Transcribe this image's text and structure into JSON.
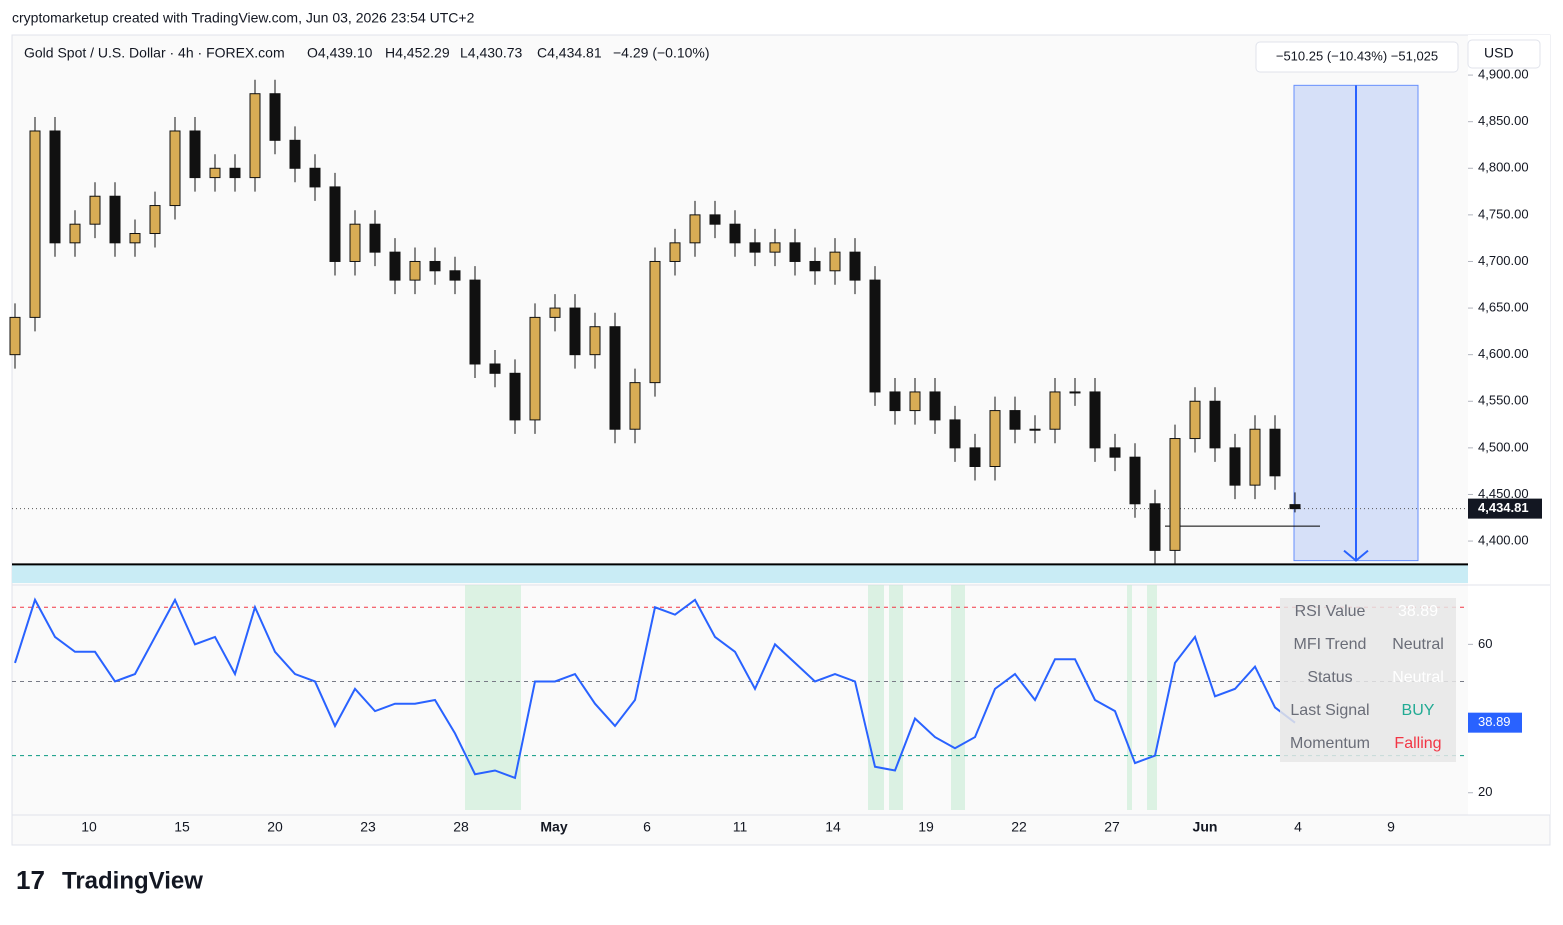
{
  "header": {
    "attribution": "cryptomarketup created with TradingView.com, Jun 03, 2026 23:54 UTC+2",
    "symbol": "Gold Spot / U.S. Dollar · 4h · FOREX.com",
    "open": "O4,439.10",
    "high": "H4,452.29",
    "low": "L4,430.73",
    "close": "C4,434.81",
    "change": "−4.29 (−0.10%)",
    "currency": "USD"
  },
  "footer": {
    "logo": "TradingView"
  },
  "chart_data": [
    {
      "type": "candlestick",
      "x_labels": [
        "10",
        "15",
        "20",
        "23",
        "28",
        "May",
        "6",
        "11",
        "14",
        "19",
        "22",
        "27",
        "Jun",
        "4",
        "9"
      ],
      "open": [
        4600,
        4640,
        4840,
        4720,
        4740,
        4770,
        4720,
        4730,
        4760,
        4840,
        4790,
        4800,
        4790,
        4880,
        4830,
        4800,
        4780,
        4700,
        4740,
        4710,
        4680,
        4700,
        4690,
        4680,
        4590,
        4580,
        4530,
        4640,
        4650,
        4600,
        4630,
        4520,
        4570,
        4700,
        4720,
        4750,
        4740,
        4720,
        4710,
        4720,
        4700,
        4690,
        4710,
        4680,
        4560,
        4540,
        4560,
        4530,
        4500,
        4480,
        4540,
        4520,
        4520,
        4560,
        4560,
        4500,
        4490,
        4440,
        4390,
        4510,
        4550,
        4500,
        4460,
        4520,
        4439.1
      ],
      "high": [
        4655,
        4855,
        4855,
        4755,
        4785,
        4785,
        4745,
        4775,
        4855,
        4855,
        4815,
        4815,
        4895,
        4895,
        4845,
        4815,
        4795,
        4755,
        4755,
        4725,
        4715,
        4715,
        4705,
        4695,
        4605,
        4595,
        4655,
        4665,
        4665,
        4645,
        4645,
        4585,
        4715,
        4735,
        4765,
        4765,
        4755,
        4735,
        4735,
        4735,
        4715,
        4725,
        4725,
        4695,
        4575,
        4575,
        4575,
        4545,
        4515,
        4555,
        4555,
        4535,
        4575,
        4575,
        4575,
        4515,
        4505,
        4455,
        4525,
        4565,
        4565,
        4515,
        4535,
        4535,
        4452.29
      ],
      "low": [
        4585,
        4625,
        4705,
        4705,
        4725,
        4705,
        4705,
        4715,
        4745,
        4775,
        4775,
        4775,
        4775,
        4815,
        4785,
        4765,
        4685,
        4685,
        4695,
        4665,
        4665,
        4675,
        4665,
        4575,
        4565,
        4515,
        4515,
        4625,
        4585,
        4585,
        4505,
        4505,
        4555,
        4685,
        4705,
        4725,
        4705,
        4695,
        4695,
        4685,
        4675,
        4675,
        4665,
        4545,
        4525,
        4525,
        4515,
        4485,
        4465,
        4465,
        4505,
        4505,
        4505,
        4545,
        4485,
        4475,
        4425,
        4375,
        4375,
        4495,
        4485,
        4445,
        4445,
        4455,
        4430.73
      ],
      "close": [
        4640,
        4840,
        4720,
        4740,
        4770,
        4720,
        4730,
        4760,
        4840,
        4790,
        4800,
        4790,
        4880,
        4830,
        4800,
        4780,
        4700,
        4740,
        4710,
        4680,
        4700,
        4690,
        4680,
        4590,
        4580,
        4530,
        4640,
        4650,
        4600,
        4630,
        4520,
        4570,
        4700,
        4720,
        4750,
        4740,
        4720,
        4710,
        4720,
        4700,
        4690,
        4710,
        4680,
        4560,
        4540,
        4560,
        4530,
        4500,
        4480,
        4540,
        4520,
        4520,
        4560,
        4560,
        4500,
        4490,
        4440,
        4390,
        4510,
        4550,
        4500,
        4460,
        4520,
        4470,
        4434.81
      ],
      "up_color": "#d9ad55",
      "down_color": "#111111",
      "ylim": [
        4355,
        4943
      ],
      "yticks": [
        {
          "value": 4400,
          "label": "4,400.00"
        },
        {
          "value": 4450,
          "label": "4,450.00"
        },
        {
          "value": 4500,
          "label": "4,500.00"
        },
        {
          "value": 4550,
          "label": "4,550.00"
        },
        {
          "value": 4600,
          "label": "4,600.00"
        },
        {
          "value": 4650,
          "label": "4,650.00"
        },
        {
          "value": 4700,
          "label": "4,700.00"
        },
        {
          "value": 4750,
          "label": "4,750.00"
        },
        {
          "value": 4800,
          "label": "4,800.00"
        },
        {
          "value": 4850,
          "label": "4,850.00"
        },
        {
          "value": 4900,
          "label": "4,900.00"
        }
      ],
      "last_price": {
        "value": 4434.81,
        "label": "4,434.81"
      },
      "support": 4375,
      "position": {
        "top": 4889,
        "bottom": 4379,
        "label": "−510.25 (−10.43%) −51,025"
      }
    },
    {
      "type": "line",
      "values": [
        55,
        72,
        62,
        58,
        58,
        50,
        52,
        62,
        72,
        60,
        62,
        52,
        70,
        58,
        52,
        50,
        38,
        48,
        42,
        44,
        44,
        45,
        36,
        25,
        26,
        24,
        50,
        50,
        52,
        44,
        38,
        45,
        70,
        68,
        72,
        62,
        58,
        48,
        60,
        55,
        50,
        52,
        50,
        27,
        26,
        40,
        35,
        32,
        35,
        48,
        52,
        45,
        56,
        56,
        45,
        42,
        28,
        30,
        55,
        62,
        46,
        48,
        54,
        43,
        38.89
      ],
      "color": "#2962ff",
      "ylim": [
        14,
        76
      ],
      "yticks": [
        20,
        60
      ],
      "levels": [
        {
          "value": 70,
          "color": "#f23645"
        },
        {
          "value": 50,
          "color": "#787b86"
        },
        {
          "value": 30,
          "color": "#089981"
        }
      ],
      "last_value": {
        "value": 38.89,
        "label": "38.89"
      },
      "table": {
        "rows": [
          [
            "RSI Value",
            "38.89"
          ],
          [
            "MFI Trend",
            "Neutral"
          ],
          [
            "Status",
            "Neutral"
          ],
          [
            "Last Signal",
            "BUY"
          ],
          [
            "Momentum",
            "Falling"
          ]
        ]
      }
    }
  ]
}
